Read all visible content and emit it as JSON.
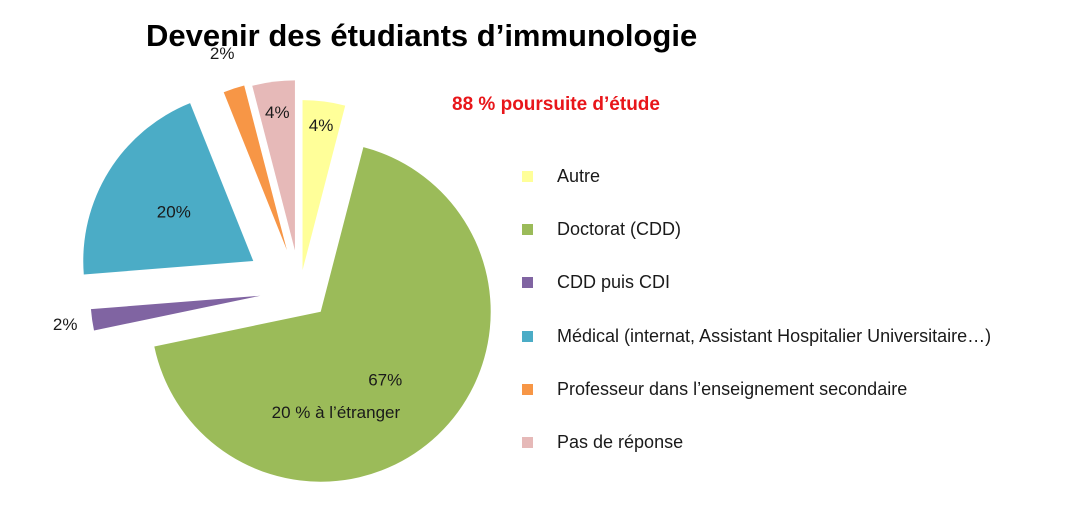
{
  "chart_data": {
    "type": "pie",
    "title": "Devenir des étudiants d’immunologie",
    "subtitle": "88 % poursuite d’étude",
    "legend_position": "right",
    "exploded": true,
    "slices": [
      {
        "name": "Autre",
        "value": 4,
        "label": "4%",
        "color": "#ffff99"
      },
      {
        "name": "Doctorat (CDD)",
        "value": 67,
        "label": "67%",
        "sublabel": "20 % à l’étranger",
        "color": "#9bbb59"
      },
      {
        "name": "CDD puis CDI",
        "value": 2,
        "label": "2%",
        "color": "#8064a2"
      },
      {
        "name": "Médical (internat, Assistant Hospitalier Universitaire…)",
        "value": 20,
        "label": "20%",
        "color": "#4bacc6"
      },
      {
        "name": "Professeur dans l’enseignement secondaire",
        "value": 2,
        "label": "2%",
        "color": "#f79646"
      },
      {
        "name": "Pas de réponse",
        "value": 4,
        "label": "4%",
        "color": "#e6b9b8"
      }
    ]
  }
}
